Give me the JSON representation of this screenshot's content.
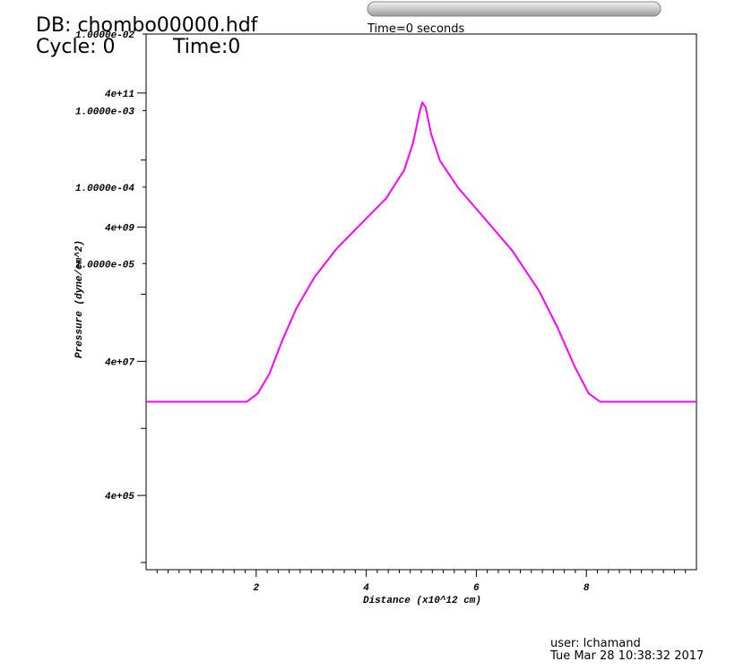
{
  "header": {
    "database": "DB: chombo00000.hdf",
    "cycle": "Cycle: 0",
    "time": "Time:0",
    "slider_label": "Time=0 seconds"
  },
  "footer": {
    "user": "user: lchamand",
    "date": "Tue Mar 28 10:38:32 2017"
  },
  "chart_data": {
    "type": "line",
    "x_label": "Distance (x10^12 cm)",
    "y_label": "Pressure (dyne/cm^2)",
    "x": [
      0,
      1.83,
      2.03,
      2.24,
      2.48,
      2.73,
      3.06,
      3.46,
      4.02,
      4.36,
      4.69,
      4.85,
      4.97,
      5.02,
      5.08,
      5.18,
      5.34,
      5.67,
      6.16,
      6.65,
      7.14,
      7.47,
      7.79,
      8.04,
      8.25,
      10
    ],
    "values": [
      10000000,
      10000000,
      13300000,
      26000000,
      84000000,
      245000000,
      720000000,
      1900000000,
      5600000000,
      10700000000,
      28500000000,
      72000000000,
      210000000000,
      290000000000,
      245000000000,
      97000000000,
      39000000000,
      15500000000,
      5300000000,
      1800000000,
      450000000,
      130000000,
      33000000,
      13300000,
      10000000,
      10000000
    ],
    "color": "#ff00ff",
    "xlim": [
      0,
      10
    ],
    "xticks": [
      2,
      4,
      6,
      8
    ],
    "xminorticks": [
      0.2,
      0.4,
      0.6,
      0.8,
      1,
      1.2,
      1.4,
      1.6,
      1.8,
      2.2,
      2.4,
      2.6,
      2.8,
      3,
      3.2,
      3.4,
      3.6,
      3.8,
      4.2,
      4.4,
      4.6,
      4.8,
      5,
      5.2,
      5.4,
      5.6,
      5.8,
      6.2,
      6.4,
      6.6,
      6.8,
      7,
      7.2,
      7.4,
      7.6,
      7.8,
      8.2,
      8.4,
      8.6,
      8.8,
      9,
      9.2,
      9.4,
      9.6,
      9.8
    ],
    "ylim": [
      31300,
      3030000000000
    ],
    "ylog": true,
    "yticks": [
      {
        "value": 400000,
        "label": "4e+05"
      },
      {
        "value": 40000000,
        "label": "4e+07"
      },
      {
        "value": 4000000000,
        "label": "4e+09"
      },
      {
        "value": 400000000000,
        "label": "4e+11"
      }
    ],
    "yminorticks": [
      40000,
      4000000,
      400000000,
      40000000000
    ],
    "y2lim": [
      1e-09,
      0.01
    ],
    "y2log": true,
    "y2ticks": [
      {
        "value": 1e-05,
        "label": "1.0000e-05"
      },
      {
        "value": 0.0001,
        "label": "1.0000e-04"
      },
      {
        "value": 0.001,
        "label": "1.0000e-03"
      },
      {
        "value": 0.01,
        "label": "1.0000e-02"
      }
    ]
  }
}
